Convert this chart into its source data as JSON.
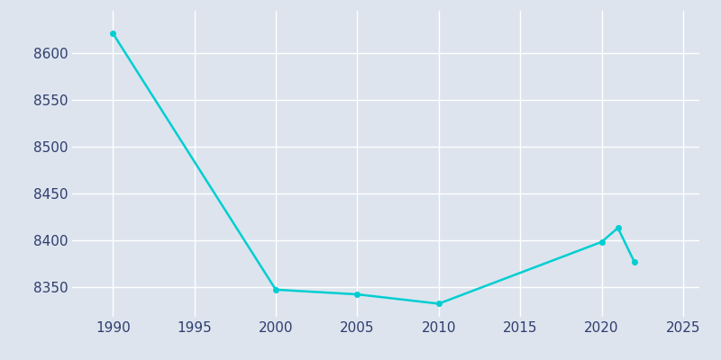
{
  "years": [
    1990,
    2000,
    2005,
    2010,
    2020,
    2021,
    2022
  ],
  "population": [
    8621,
    8347,
    8342,
    8332,
    8398,
    8413,
    8377
  ],
  "line_color": "#00CED1",
  "marker_color": "#00CED1",
  "bg_color": "#dde4ee",
  "grid_color": "#ffffff",
  "xlim": [
    1987.5,
    2026
  ],
  "ylim": [
    8318,
    8645
  ],
  "yticks": [
    8350,
    8400,
    8450,
    8500,
    8550,
    8600
  ],
  "xticks": [
    1990,
    1995,
    2000,
    2005,
    2010,
    2015,
    2020,
    2025
  ],
  "tick_color": "#2e3d6e",
  "linewidth": 1.8,
  "markersize": 4,
  "tick_labelsize": 11
}
